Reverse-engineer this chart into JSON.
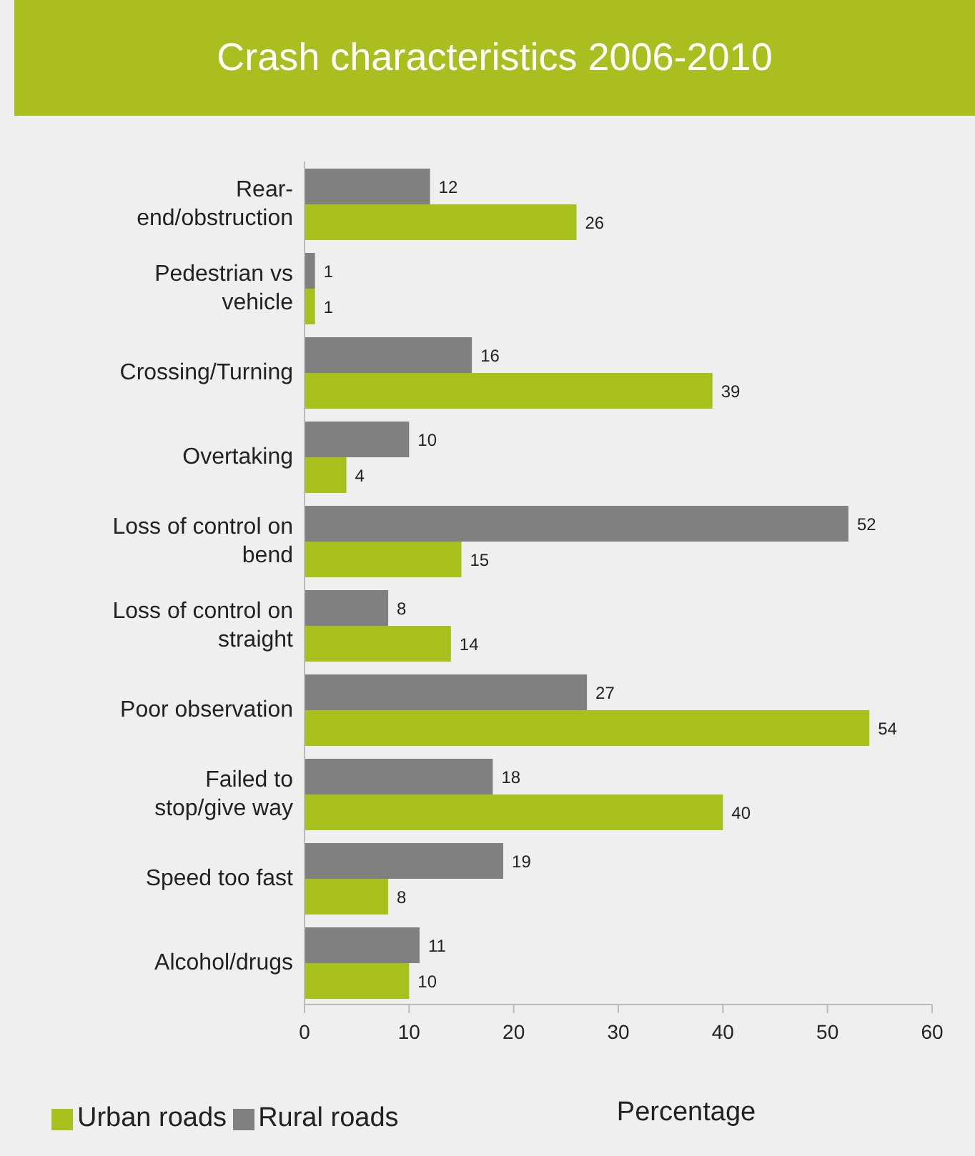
{
  "chart_data": {
    "type": "bar",
    "orientation": "horizontal",
    "title": "Crash characteristics 2006-2010",
    "xlabel": "Percentage",
    "categories": [
      "Rear-end/obstruction",
      "Pedestrian vs vehicle",
      "Crossing/Turning",
      "Overtaking",
      "Loss of control on bend",
      "Loss of control on straight",
      "Poor observation",
      "Failed to stop/give way",
      "Speed too fast",
      "Alcohol/drugs"
    ],
    "series": [
      {
        "name": "Urban roads",
        "color": "#a9c11c",
        "values": [
          26,
          1,
          39,
          4,
          15,
          14,
          54,
          40,
          8,
          10
        ]
      },
      {
        "name": "Rural roads",
        "color": "#808080",
        "values": [
          12,
          1,
          16,
          10,
          52,
          8,
          27,
          18,
          19,
          11
        ]
      }
    ],
    "xlim": [
      0,
      60
    ],
    "xticks": [
      0,
      10,
      20,
      30,
      40,
      50,
      60
    ],
    "data_labels": true,
    "legend": "bottom left"
  }
}
